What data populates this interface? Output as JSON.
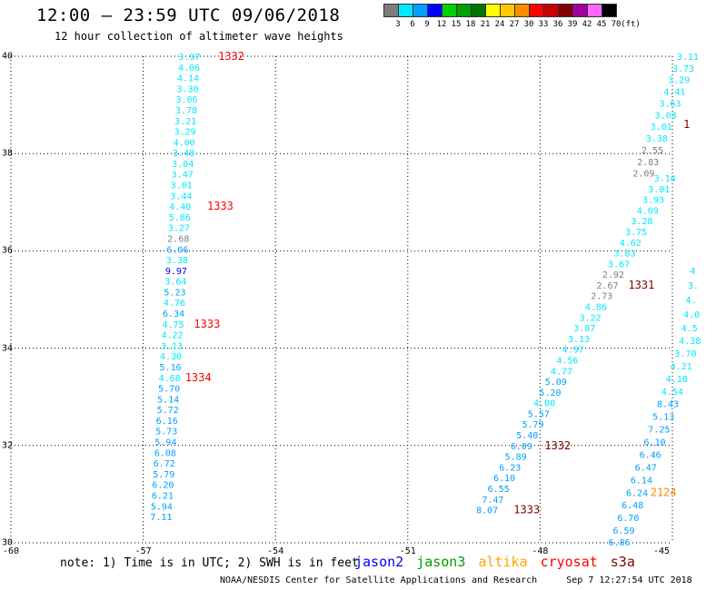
{
  "header": {
    "title": "12:00 — 23:59 UTC 09/06/2018",
    "subtitle": "12 hour collection of altimeter wave heights"
  },
  "legend": {
    "colors": [
      "#7d7d7d",
      "#00e8ff",
      "#00a0ff",
      "#0000ff",
      "#00d200",
      "#00a000",
      "#007300",
      "#ffff00",
      "#ffc800",
      "#ff8c00",
      "#ff0000",
      "#c80000",
      "#820000",
      "#a000a0",
      "#ff66ff",
      "#000000"
    ],
    "ticks": [
      "3",
      "6",
      "9",
      "12",
      "15",
      "18",
      "21",
      "24",
      "27",
      "30",
      "33",
      "36",
      "39",
      "42",
      "45",
      "70",
      "(ft)"
    ]
  },
  "axes": {
    "x": {
      "range": [
        -60,
        -45
      ],
      "labels": [
        "-60",
        "-57",
        "-54",
        "-51",
        "-48",
        "-45"
      ]
    },
    "y": {
      "range": [
        30,
        40
      ],
      "labels": [
        "40",
        "38",
        "36",
        "34",
        "32",
        "30"
      ]
    },
    "grid": "dotted"
  },
  "tracks": [
    {
      "name": "left-track",
      "points": [
        {
          "lat": 40.0,
          "lon": -56.2,
          "v": "3.97",
          "c": "#00e8ff"
        },
        {
          "lat": 39.78,
          "lon": -56.21,
          "v": "4.06",
          "c": "#00e8ff"
        },
        {
          "lat": 39.56,
          "lon": -56.23,
          "v": "4.14",
          "c": "#00e8ff"
        },
        {
          "lat": 39.34,
          "lon": -56.24,
          "v": "3.30",
          "c": "#00e8ff"
        },
        {
          "lat": 39.12,
          "lon": -56.26,
          "v": "3.06",
          "c": "#00e8ff"
        },
        {
          "lat": 38.9,
          "lon": -56.27,
          "v": "3.78",
          "c": "#00e8ff"
        },
        {
          "lat": 38.68,
          "lon": -56.29,
          "v": "3.21",
          "c": "#00e8ff"
        },
        {
          "lat": 38.46,
          "lon": -56.3,
          "v": "3.29",
          "c": "#00e8ff"
        },
        {
          "lat": 38.24,
          "lon": -56.32,
          "v": "4.00",
          "c": "#00e8ff"
        },
        {
          "lat": 38.02,
          "lon": -56.33,
          "v": "3.48",
          "c": "#00e8ff"
        },
        {
          "lat": 37.8,
          "lon": -56.35,
          "v": "3.04",
          "c": "#00e8ff"
        },
        {
          "lat": 37.58,
          "lon": -56.36,
          "v": "3.47",
          "c": "#00e8ff"
        },
        {
          "lat": 37.36,
          "lon": -56.38,
          "v": "3.01",
          "c": "#00e8ff"
        },
        {
          "lat": 37.14,
          "lon": -56.39,
          "v": "3.44",
          "c": "#00e8ff"
        },
        {
          "lat": 36.92,
          "lon": -56.41,
          "v": "4.40",
          "c": "#00e8ff"
        },
        {
          "lat": 36.7,
          "lon": -56.42,
          "v": "5.86",
          "c": "#00e8ff"
        },
        {
          "lat": 36.48,
          "lon": -56.44,
          "v": "3.27",
          "c": "#00e8ff"
        },
        {
          "lat": 36.26,
          "lon": -56.45,
          "v": "2.68",
          "c": "#7d7d7d"
        },
        {
          "lat": 36.04,
          "lon": -56.47,
          "v": "6.06",
          "c": "#00a0ff"
        },
        {
          "lat": 35.82,
          "lon": -56.48,
          "v": "3.38",
          "c": "#00e8ff"
        },
        {
          "lat": 35.6,
          "lon": -56.5,
          "v": "9.97",
          "c": "#0000ff"
        },
        {
          "lat": 35.38,
          "lon": -56.51,
          "v": "3.64",
          "c": "#00e8ff"
        },
        {
          "lat": 35.16,
          "lon": -56.53,
          "v": "5.23",
          "c": "#00a0ff"
        },
        {
          "lat": 34.94,
          "lon": -56.54,
          "v": "4.76",
          "c": "#00e8ff"
        },
        {
          "lat": 34.72,
          "lon": -56.56,
          "v": "6.34",
          "c": "#00a0ff"
        },
        {
          "lat": 34.5,
          "lon": -56.57,
          "v": "4.75",
          "c": "#00e8ff"
        },
        {
          "lat": 34.28,
          "lon": -56.59,
          "v": "4.22",
          "c": "#00e8ff"
        },
        {
          "lat": 34.06,
          "lon": -56.6,
          "v": "3.13",
          "c": "#00e8ff"
        },
        {
          "lat": 33.84,
          "lon": -56.62,
          "v": "4.30",
          "c": "#00e8ff"
        },
        {
          "lat": 33.62,
          "lon": -56.63,
          "v": "5.16",
          "c": "#00a0ff"
        },
        {
          "lat": 33.4,
          "lon": -56.65,
          "v": "4.68",
          "c": "#00e8ff"
        },
        {
          "lat": 33.18,
          "lon": -56.66,
          "v": "5.70",
          "c": "#00a0ff"
        },
        {
          "lat": 32.96,
          "lon": -56.68,
          "v": "5.14",
          "c": "#00a0ff"
        },
        {
          "lat": 32.74,
          "lon": -56.69,
          "v": "5.72",
          "c": "#00a0ff"
        },
        {
          "lat": 32.52,
          "lon": -56.71,
          "v": "6.16",
          "c": "#00a0ff"
        },
        {
          "lat": 32.3,
          "lon": -56.72,
          "v": "5.73",
          "c": "#00a0ff"
        },
        {
          "lat": 32.08,
          "lon": -56.74,
          "v": "5.94",
          "c": "#00a0ff"
        },
        {
          "lat": 31.86,
          "lon": -56.75,
          "v": "6.08",
          "c": "#00a0ff"
        },
        {
          "lat": 31.64,
          "lon": -56.77,
          "v": "6.72",
          "c": "#00a0ff"
        },
        {
          "lat": 31.42,
          "lon": -56.78,
          "v": "5.79",
          "c": "#00a0ff"
        },
        {
          "lat": 31.2,
          "lon": -56.8,
          "v": "6.20",
          "c": "#00a0ff"
        },
        {
          "lat": 30.98,
          "lon": -56.81,
          "v": "6.21",
          "c": "#00a0ff"
        },
        {
          "lat": 30.76,
          "lon": -56.83,
          "v": "5.94",
          "c": "#00a0ff"
        },
        {
          "lat": 30.54,
          "lon": -56.84,
          "v": "7.11",
          "c": "#00a0ff"
        }
      ]
    },
    {
      "name": "middle-track",
      "points": [
        {
          "lat": 37.5,
          "lon": -45.42,
          "v": "3.14",
          "c": "#00e8ff"
        },
        {
          "lat": 37.28,
          "lon": -45.55,
          "v": "3.01",
          "c": "#00e8ff"
        },
        {
          "lat": 37.06,
          "lon": -45.68,
          "v": "3.93",
          "c": "#00e8ff"
        },
        {
          "lat": 36.84,
          "lon": -45.81,
          "v": "4.09",
          "c": "#00e8ff"
        },
        {
          "lat": 36.62,
          "lon": -45.94,
          "v": "3.28",
          "c": "#00e8ff"
        },
        {
          "lat": 36.4,
          "lon": -46.07,
          "v": "3.75",
          "c": "#00e8ff"
        },
        {
          "lat": 36.18,
          "lon": -46.2,
          "v": "4.62",
          "c": "#00e8ff"
        },
        {
          "lat": 35.96,
          "lon": -46.33,
          "v": "3.83",
          "c": "#00e8ff"
        },
        {
          "lat": 35.74,
          "lon": -46.46,
          "v": "3.67",
          "c": "#00e8ff"
        },
        {
          "lat": 35.52,
          "lon": -46.59,
          "v": "2.92",
          "c": "#7d7d7d"
        },
        {
          "lat": 35.3,
          "lon": -46.72,
          "v": "2.67",
          "c": "#7d7d7d"
        },
        {
          "lat": 35.08,
          "lon": -46.85,
          "v": "2.73",
          "c": "#7d7d7d"
        },
        {
          "lat": 34.86,
          "lon": -46.98,
          "v": "4.86",
          "c": "#00e8ff"
        },
        {
          "lat": 34.64,
          "lon": -47.11,
          "v": "3.22",
          "c": "#00e8ff"
        },
        {
          "lat": 34.42,
          "lon": -47.24,
          "v": "3.87",
          "c": "#00e8ff"
        },
        {
          "lat": 34.2,
          "lon": -47.37,
          "v": "3.13",
          "c": "#00e8ff"
        },
        {
          "lat": 33.98,
          "lon": -47.5,
          "v": "4.97",
          "c": "#00e8ff"
        },
        {
          "lat": 33.76,
          "lon": -47.63,
          "v": "4.56",
          "c": "#00e8ff"
        },
        {
          "lat": 33.54,
          "lon": -47.76,
          "v": "4.77",
          "c": "#00e8ff"
        },
        {
          "lat": 33.32,
          "lon": -47.89,
          "v": "5.09",
          "c": "#00a0ff"
        },
        {
          "lat": 33.1,
          "lon": -48.02,
          "v": "5.20",
          "c": "#00a0ff"
        },
        {
          "lat": 32.88,
          "lon": -48.15,
          "v": "4.00",
          "c": "#00e8ff"
        },
        {
          "lat": 32.66,
          "lon": -48.28,
          "v": "5.57",
          "c": "#00a0ff"
        },
        {
          "lat": 32.44,
          "lon": -48.41,
          "v": "5.79",
          "c": "#00a0ff"
        },
        {
          "lat": 32.22,
          "lon": -48.54,
          "v": "5.40",
          "c": "#00a0ff"
        },
        {
          "lat": 32.0,
          "lon": -48.67,
          "v": "6.09",
          "c": "#00a0ff"
        },
        {
          "lat": 31.78,
          "lon": -48.8,
          "v": "5.89",
          "c": "#00a0ff"
        },
        {
          "lat": 31.56,
          "lon": -48.93,
          "v": "6.23",
          "c": "#00a0ff"
        },
        {
          "lat": 31.34,
          "lon": -49.06,
          "v": "6.10",
          "c": "#00a0ff"
        },
        {
          "lat": 31.12,
          "lon": -49.19,
          "v": "6.55",
          "c": "#00a0ff"
        },
        {
          "lat": 30.9,
          "lon": -49.32,
          "v": "7.47",
          "c": "#00a0ff"
        },
        {
          "lat": 30.68,
          "lon": -49.45,
          "v": "8.07",
          "c": "#00a0ff"
        }
      ]
    },
    {
      "name": "right-track",
      "points": [
        {
          "lat": 40.0,
          "lon": -44.9,
          "v": "3.11",
          "c": "#00e8ff"
        },
        {
          "lat": 39.76,
          "lon": -45.0,
          "v": "3.73",
          "c": "#00e8ff"
        },
        {
          "lat": 39.52,
          "lon": -45.1,
          "v": "3.29",
          "c": "#00e8ff"
        },
        {
          "lat": 39.28,
          "lon": -45.2,
          "v": "4.41",
          "c": "#00e8ff"
        },
        {
          "lat": 39.04,
          "lon": -45.3,
          "v": "3.63",
          "c": "#00e8ff"
        },
        {
          "lat": 38.8,
          "lon": -45.4,
          "v": "3.03",
          "c": "#00e8ff"
        },
        {
          "lat": 38.56,
          "lon": -45.5,
          "v": "3.01",
          "c": "#00e8ff"
        },
        {
          "lat": 38.32,
          "lon": -45.6,
          "v": "3.38",
          "c": "#00e8ff"
        },
        {
          "lat": 38.08,
          "lon": -45.7,
          "v": "2.55",
          "c": "#7d7d7d"
        },
        {
          "lat": 37.84,
          "lon": -45.8,
          "v": "2.83",
          "c": "#7d7d7d"
        },
        {
          "lat": 37.6,
          "lon": -45.9,
          "v": "2.09",
          "c": "#7d7d7d"
        },
        {
          "lat": 35.6,
          "lon": -44.6,
          "v": "4",
          "c": "#00e8ff"
        },
        {
          "lat": 35.3,
          "lon": -44.65,
          "v": "3.",
          "c": "#00e8ff"
        },
        {
          "lat": 35.0,
          "lon": -44.7,
          "v": "4.",
          "c": "#00e8ff"
        },
        {
          "lat": 34.7,
          "lon": -44.75,
          "v": "4.0",
          "c": "#00e8ff"
        },
        {
          "lat": 34.42,
          "lon": -44.8,
          "v": "4.5",
          "c": "#00e8ff"
        },
        {
          "lat": 34.16,
          "lon": -44.85,
          "v": "4.38",
          "c": "#00e8ff"
        },
        {
          "lat": 33.9,
          "lon": -44.95,
          "v": "3.70",
          "c": "#00e8ff"
        },
        {
          "lat": 33.64,
          "lon": -45.05,
          "v": "4.21",
          "c": "#00e8ff"
        },
        {
          "lat": 33.38,
          "lon": -45.15,
          "v": "4.18",
          "c": "#00e8ff"
        },
        {
          "lat": 33.12,
          "lon": -45.25,
          "v": "4.54",
          "c": "#00e8ff"
        },
        {
          "lat": 32.86,
          "lon": -45.35,
          "v": "8.43",
          "c": "#00a0ff"
        },
        {
          "lat": 32.6,
          "lon": -45.45,
          "v": "5.13",
          "c": "#00a0ff"
        },
        {
          "lat": 32.34,
          "lon": -45.55,
          "v": "7.25",
          "c": "#00a0ff"
        },
        {
          "lat": 32.08,
          "lon": -45.65,
          "v": "6.10",
          "c": "#00a0ff"
        },
        {
          "lat": 31.82,
          "lon": -45.75,
          "v": "6.46",
          "c": "#00a0ff"
        },
        {
          "lat": 31.56,
          "lon": -45.85,
          "v": "6.47",
          "c": "#00a0ff"
        },
        {
          "lat": 31.3,
          "lon": -45.95,
          "v": "6.14",
          "c": "#00a0ff"
        },
        {
          "lat": 31.04,
          "lon": -46.05,
          "v": "6.24",
          "c": "#00a0ff"
        },
        {
          "lat": 30.78,
          "lon": -46.15,
          "v": "6.48",
          "c": "#00a0ff"
        },
        {
          "lat": 30.52,
          "lon": -46.25,
          "v": "6.70",
          "c": "#00a0ff"
        },
        {
          "lat": 30.26,
          "lon": -46.35,
          "v": "6.59",
          "c": "#00a0ff"
        },
        {
          "lat": 30.02,
          "lon": -46.45,
          "v": "6.86",
          "c": "#00a0ff"
        }
      ]
    }
  ],
  "time_tags": [
    {
      "lat": 40.0,
      "lon": -55.3,
      "t": "1332",
      "c": "#ff0000"
    },
    {
      "lat": 36.92,
      "lon": -55.55,
      "t": "1333",
      "c": "#ff0000"
    },
    {
      "lat": 34.5,
      "lon": -55.85,
      "t": "1333",
      "c": "#ff0000"
    },
    {
      "lat": 33.4,
      "lon": -56.05,
      "t": "1334",
      "c": "#ff0000"
    },
    {
      "lat": 35.3,
      "lon": -46.0,
      "t": "1331",
      "c": "#820000"
    },
    {
      "lat": 32.0,
      "lon": -47.9,
      "t": "1332",
      "c": "#820000"
    },
    {
      "lat": 30.68,
      "lon": -48.6,
      "t": "1333",
      "c": "#820000"
    },
    {
      "lat": 38.6,
      "lon": -44.75,
      "t": "1",
      "c": "#820000"
    },
    {
      "lat": 31.04,
      "lon": -45.5,
      "t": "2124",
      "c": "#ff8c00"
    }
  ],
  "note": "note: 1) Time is in UTC; 2) SWH is in feet",
  "satellites": [
    {
      "name": "jason2",
      "color": "#0000ff"
    },
    {
      "name": "jason3",
      "color": "#00a000"
    },
    {
      "name": "altika",
      "color": "#ffa500"
    },
    {
      "name": "cryosat",
      "color": "#ff0000"
    },
    {
      "name": "s3a",
      "color": "#820000"
    }
  ],
  "footer": {
    "org": "NOAA/NESDIS Center for Satellite Applications and Research",
    "timestamp": "Sep  7 12:27:54 UTC 2018"
  }
}
